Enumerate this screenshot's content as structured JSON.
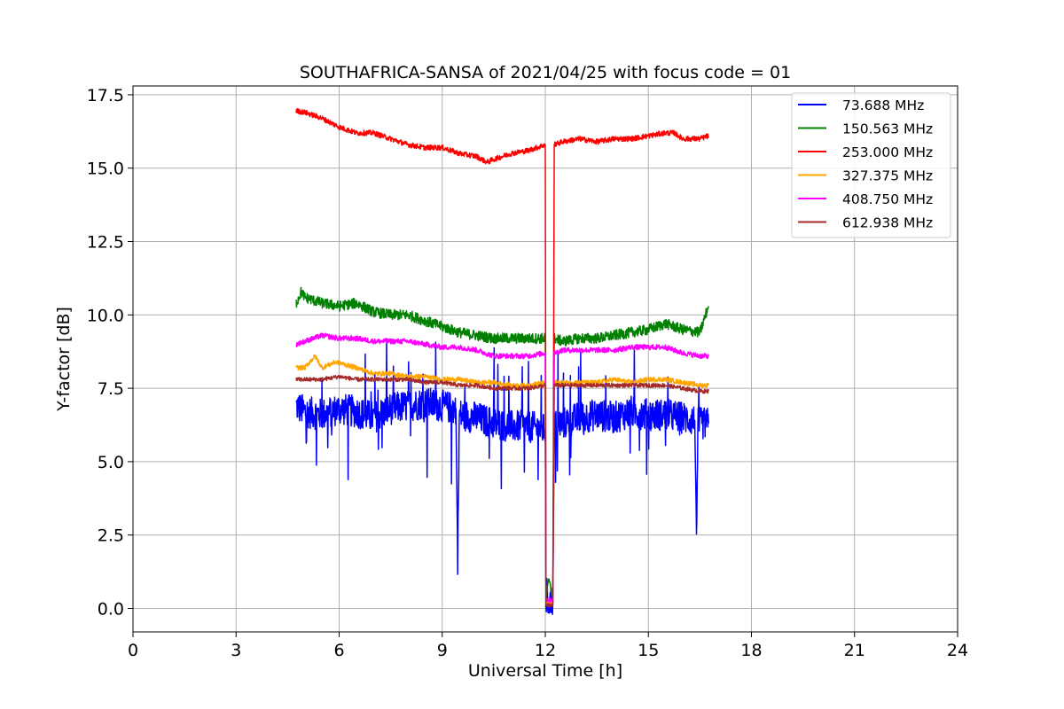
{
  "chart_data": {
    "type": "line",
    "title": "SOUTHAFRICA-SANSA of 2021/04/25 with focus code = 01",
    "xlabel": "Universal Time [h]",
    "ylabel": "Y-factor [dB]",
    "xlim": [
      0,
      24
    ],
    "ylim": [
      -0.8,
      17.8
    ],
    "xticks": [
      0,
      3,
      6,
      9,
      12,
      15,
      18,
      21,
      24
    ],
    "xtick_labels": [
      "0",
      "3",
      "6",
      "9",
      "12",
      "15",
      "18",
      "21",
      "24"
    ],
    "yticks": [
      0.0,
      2.5,
      5.0,
      7.5,
      10.0,
      12.5,
      15.0,
      17.5
    ],
    "ytick_labels": [
      "0.0",
      "2.5",
      "5.0",
      "7.5",
      "10.0",
      "12.5",
      "15.0",
      "17.5"
    ],
    "grid": true,
    "legend_position": "top-right",
    "series": [
      {
        "name": " 73.688 MHz",
        "color": "#0000ff",
        "points": [
          [
            4.75,
            6.9
          ],
          [
            5.0,
            6.7
          ],
          [
            5.5,
            6.6
          ],
          [
            6.0,
            6.8
          ],
          [
            6.5,
            6.7
          ],
          [
            7.0,
            6.5
          ],
          [
            7.5,
            6.8
          ],
          [
            8.0,
            6.9
          ],
          [
            8.5,
            7.0
          ],
          [
            9.0,
            6.9
          ],
          [
            9.4,
            6.8
          ],
          [
            9.45,
            1.7
          ],
          [
            9.5,
            6.6
          ],
          [
            10.0,
            6.5
          ],
          [
            10.5,
            6.3
          ],
          [
            11.0,
            6.2
          ],
          [
            11.5,
            6.2
          ],
          [
            11.9,
            6.1
          ],
          [
            12.0,
            6.1
          ],
          [
            12.02,
            0.2
          ],
          [
            12.22,
            0.3
          ],
          [
            12.26,
            6.2
          ],
          [
            12.5,
            6.3
          ],
          [
            13.0,
            6.5
          ],
          [
            13.5,
            6.6
          ],
          [
            14.0,
            6.5
          ],
          [
            14.5,
            6.7
          ],
          [
            15.0,
            6.6
          ],
          [
            15.5,
            6.6
          ],
          [
            16.0,
            6.5
          ],
          [
            16.35,
            6.4
          ],
          [
            16.4,
            2.8
          ],
          [
            16.45,
            6.3
          ],
          [
            16.75,
            6.3
          ]
        ]
      },
      {
        "name": "150.563 MHz",
        "color": "#008000",
        "points": [
          [
            4.75,
            10.4
          ],
          [
            4.9,
            10.8
          ],
          [
            5.0,
            10.6
          ],
          [
            5.5,
            10.4
          ],
          [
            6.0,
            10.3
          ],
          [
            6.5,
            10.4
          ],
          [
            7.0,
            10.1
          ],
          [
            7.5,
            10.0
          ],
          [
            8.0,
            10.0
          ],
          [
            8.5,
            9.8
          ],
          [
            9.0,
            9.6
          ],
          [
            9.5,
            9.4
          ],
          [
            10.0,
            9.3
          ],
          [
            10.5,
            9.2
          ],
          [
            11.0,
            9.2
          ],
          [
            11.5,
            9.2
          ],
          [
            11.9,
            9.2
          ],
          [
            12.0,
            9.2
          ],
          [
            12.02,
            0.4
          ],
          [
            12.12,
            1.0
          ],
          [
            12.22,
            0.4
          ],
          [
            12.26,
            9.2
          ],
          [
            12.5,
            9.1
          ],
          [
            13.0,
            9.2
          ],
          [
            13.5,
            9.2
          ],
          [
            14.0,
            9.3
          ],
          [
            14.5,
            9.4
          ],
          [
            15.0,
            9.5
          ],
          [
            15.5,
            9.7
          ],
          [
            16.0,
            9.5
          ],
          [
            16.5,
            9.4
          ],
          [
            16.75,
            10.3
          ]
        ]
      },
      {
        "name": "253.000 MHz",
        "color": "#ff0000",
        "points": [
          [
            4.75,
            16.95
          ],
          [
            5.0,
            16.9
          ],
          [
            5.5,
            16.7
          ],
          [
            6.0,
            16.4
          ],
          [
            6.5,
            16.2
          ],
          [
            7.0,
            16.2
          ],
          [
            7.5,
            16.0
          ],
          [
            8.0,
            15.8
          ],
          [
            8.5,
            15.7
          ],
          [
            9.0,
            15.7
          ],
          [
            9.5,
            15.5
          ],
          [
            10.0,
            15.4
          ],
          [
            10.3,
            15.2
          ],
          [
            10.5,
            15.3
          ],
          [
            11.0,
            15.5
          ],
          [
            11.5,
            15.6
          ],
          [
            12.0,
            15.8
          ],
          [
            12.02,
            0.2
          ],
          [
            12.22,
            0.2
          ],
          [
            12.26,
            15.8
          ],
          [
            12.5,
            15.9
          ],
          [
            13.0,
            16.0
          ],
          [
            13.5,
            15.9
          ],
          [
            14.0,
            16.0
          ],
          [
            14.5,
            16.0
          ],
          [
            15.0,
            16.1
          ],
          [
            15.5,
            16.2
          ],
          [
            15.75,
            16.2
          ],
          [
            16.0,
            16.0
          ],
          [
            16.5,
            16.0
          ],
          [
            16.75,
            16.1
          ]
        ]
      },
      {
        "name": "327.375 MHz",
        "color": "#ffa500",
        "points": [
          [
            4.75,
            8.2
          ],
          [
            5.0,
            8.2
          ],
          [
            5.3,
            8.6
          ],
          [
            5.5,
            8.2
          ],
          [
            5.9,
            8.4
          ],
          [
            6.2,
            8.3
          ],
          [
            6.5,
            8.2
          ],
          [
            7.0,
            8.0
          ],
          [
            7.5,
            8.0
          ],
          [
            8.0,
            7.9
          ],
          [
            8.5,
            7.9
          ],
          [
            9.0,
            7.8
          ],
          [
            9.5,
            7.8
          ],
          [
            10.0,
            7.7
          ],
          [
            10.5,
            7.7
          ],
          [
            11.0,
            7.6
          ],
          [
            11.5,
            7.6
          ],
          [
            12.0,
            7.7
          ],
          [
            12.02,
            0.2
          ],
          [
            12.22,
            0.2
          ],
          [
            12.26,
            7.7
          ],
          [
            12.5,
            7.7
          ],
          [
            13.0,
            7.7
          ],
          [
            13.5,
            7.7
          ],
          [
            14.0,
            7.8
          ],
          [
            14.5,
            7.7
          ],
          [
            15.0,
            7.8
          ],
          [
            15.5,
            7.8
          ],
          [
            16.0,
            7.7
          ],
          [
            16.5,
            7.6
          ],
          [
            16.75,
            7.6
          ]
        ]
      },
      {
        "name": "408.750 MHz",
        "color": "#ff00ff",
        "points": [
          [
            4.75,
            9.0
          ],
          [
            5.0,
            9.1
          ],
          [
            5.5,
            9.3
          ],
          [
            6.0,
            9.2
          ],
          [
            6.5,
            9.2
          ],
          [
            7.0,
            9.1
          ],
          [
            7.5,
            9.1
          ],
          [
            8.0,
            9.1
          ],
          [
            8.5,
            9.0
          ],
          [
            9.0,
            8.9
          ],
          [
            9.5,
            8.9
          ],
          [
            10.0,
            8.8
          ],
          [
            10.5,
            8.6
          ],
          [
            11.0,
            8.6
          ],
          [
            11.5,
            8.6
          ],
          [
            12.0,
            8.7
          ],
          [
            12.02,
            0.3
          ],
          [
            12.22,
            0.3
          ],
          [
            12.26,
            8.7
          ],
          [
            12.5,
            8.8
          ],
          [
            13.0,
            8.8
          ],
          [
            13.5,
            8.8
          ],
          [
            14.0,
            8.8
          ],
          [
            14.5,
            8.9
          ],
          [
            15.0,
            8.9
          ],
          [
            15.5,
            8.9
          ],
          [
            16.0,
            8.7
          ],
          [
            16.5,
            8.6
          ],
          [
            16.75,
            8.6
          ]
        ]
      },
      {
        "name": "612.938 MHz",
        "color": "#a52a2a",
        "points": [
          [
            4.75,
            7.8
          ],
          [
            5.0,
            7.8
          ],
          [
            5.5,
            7.8
          ],
          [
            6.0,
            7.9
          ],
          [
            6.5,
            7.8
          ],
          [
            7.0,
            7.8
          ],
          [
            7.5,
            7.8
          ],
          [
            8.0,
            7.8
          ],
          [
            8.5,
            7.7
          ],
          [
            9.0,
            7.7
          ],
          [
            9.5,
            7.6
          ],
          [
            10.0,
            7.6
          ],
          [
            10.5,
            7.5
          ],
          [
            11.0,
            7.5
          ],
          [
            11.5,
            7.5
          ],
          [
            12.0,
            7.6
          ],
          [
            12.02,
            0.1
          ],
          [
            12.22,
            0.1
          ],
          [
            12.26,
            7.6
          ],
          [
            12.5,
            7.6
          ],
          [
            13.0,
            7.6
          ],
          [
            13.5,
            7.6
          ],
          [
            14.0,
            7.6
          ],
          [
            14.5,
            7.6
          ],
          [
            15.0,
            7.6
          ],
          [
            15.5,
            7.6
          ],
          [
            16.0,
            7.5
          ],
          [
            16.5,
            7.4
          ],
          [
            16.75,
            7.4
          ]
        ]
      }
    ]
  }
}
